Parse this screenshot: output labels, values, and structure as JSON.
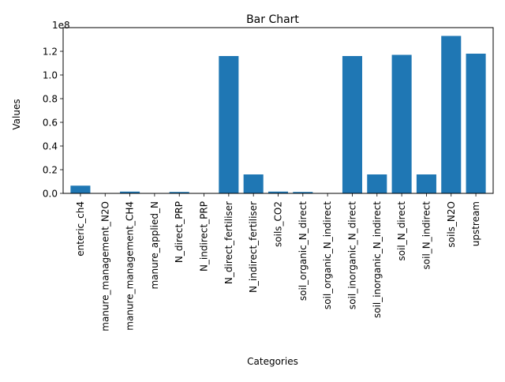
{
  "chart_data": {
    "type": "bar",
    "title": "Bar Chart",
    "xlabel": "Categories",
    "ylabel": "Values",
    "y_offset_label": "1e8",
    "ylim": [
      0,
      140000000
    ],
    "grid": false,
    "bar_color": "#1f77b4",
    "categories": [
      "enteric_ch4",
      "manure_management_N2O",
      "manure_management_CH4",
      "manure_applied_N",
      "N_direct_PRP",
      "N_indirect_PRP",
      "N_direct_fertiliser",
      "N_indirect_fertiliser",
      "soils_CO2",
      "soil_organic_N_direct",
      "soil_organic_N_indirect",
      "soil_inorganic_N_direct",
      "soil_inorganic_N_indirect",
      "soil_N_direct",
      "soil_N_indirect",
      "soils_N2O",
      "upstream"
    ],
    "values": [
      6500000,
      300000,
      1500000,
      300000,
      1200000,
      300000,
      116000000,
      16000000,
      1500000,
      1200000,
      300000,
      116000000,
      16000000,
      117000000,
      16000000,
      133000000,
      118000000
    ],
    "yticks": [
      {
        "value": 0,
        "label": "0.0"
      },
      {
        "value": 20000000,
        "label": "0.2"
      },
      {
        "value": 40000000,
        "label": "0.4"
      },
      {
        "value": 60000000,
        "label": "0.6"
      },
      {
        "value": 80000000,
        "label": "0.8"
      },
      {
        "value": 100000000,
        "label": "1.0"
      },
      {
        "value": 120000000,
        "label": "1.2"
      }
    ]
  }
}
